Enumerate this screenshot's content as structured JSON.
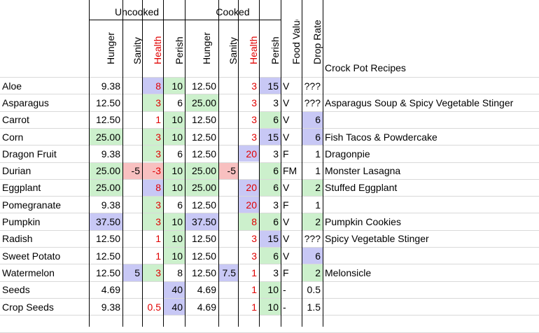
{
  "groups": {
    "uncooked": "Uncooked",
    "cooked": "Cooked"
  },
  "columns": {
    "hunger": "Hunger",
    "sanity": "Sanity",
    "health": "Health",
    "perish": "Perish",
    "hunger2": "Hunger",
    "sanity2": "Sanity",
    "health2": "Health",
    "perish2": "Perish",
    "food_value": "Food Value",
    "drop_rate": "Drop Rate",
    "recipes": "Crock Pot Recipes"
  },
  "colors": {
    "green": "#ccf0cc",
    "blue": "#c8c8f5",
    "red_fill": "#f8c0c0",
    "health_text": "#e00000"
  },
  "rows": [
    {
      "name": "Aloe",
      "values": [
        "9.38",
        "",
        "8",
        "10",
        "12.50",
        "",
        "3",
        "15",
        "V",
        "???",
        ""
      ],
      "fills": [
        "",
        "",
        "b",
        "g",
        "",
        "",
        "",
        "b",
        "",
        "",
        ""
      ]
    },
    {
      "name": "Asparagus",
      "values": [
        "12.50",
        "",
        "3",
        "6",
        "25.00",
        "",
        "3",
        "3",
        "V",
        "???",
        "Asparagus Soup & Spicy Vegetable Stinger"
      ],
      "fills": [
        "",
        "",
        "g",
        "",
        "g",
        "",
        "",
        "",
        "",
        "",
        ""
      ]
    },
    {
      "name": "Carrot",
      "values": [
        "12.50",
        "",
        "1",
        "10",
        "12.50",
        "",
        "3",
        "6",
        "V",
        "6",
        ""
      ],
      "fills": [
        "",
        "",
        "",
        "g",
        "",
        "",
        "",
        "g",
        "",
        "b",
        ""
      ]
    },
    {
      "name": "Corn",
      "values": [
        "25.00",
        "",
        "3",
        "10",
        "12.50",
        "",
        "3",
        "15",
        "V",
        "6",
        "Fish Tacos & Powdercake"
      ],
      "fills": [
        "g",
        "",
        "g",
        "g",
        "",
        "",
        "",
        "b",
        "",
        "b",
        ""
      ]
    },
    {
      "name": "Dragon Fruit",
      "values": [
        "9.38",
        "",
        "3",
        "6",
        "12.50",
        "",
        "20",
        "3",
        "F",
        "1",
        "Dragonpie"
      ],
      "fills": [
        "",
        "",
        "g",
        "",
        "",
        "",
        "b",
        "",
        "",
        "",
        ""
      ]
    },
    {
      "name": "Durian",
      "values": [
        "25.00",
        "-5",
        "-3",
        "10",
        "25.00",
        "-5",
        "",
        "6",
        "FM",
        "1",
        "Monster Lasagna"
      ],
      "fills": [
        "g",
        "r",
        "r",
        "g",
        "g",
        "r",
        "",
        "g",
        "",
        "",
        ""
      ]
    },
    {
      "name": "Eggplant",
      "values": [
        "25.00",
        "",
        "8",
        "10",
        "25.00",
        "",
        "20",
        "6",
        "V",
        "2",
        "Stuffed Eggplant"
      ],
      "fills": [
        "g",
        "",
        "b",
        "g",
        "g",
        "",
        "b",
        "g",
        "",
        "g",
        ""
      ]
    },
    {
      "name": "Pomegranate",
      "values": [
        "9.38",
        "",
        "3",
        "6",
        "12.50",
        "",
        "20",
        "3",
        "F",
        "1",
        ""
      ],
      "fills": [
        "",
        "",
        "g",
        "",
        "",
        "",
        "b",
        "",
        "",
        "",
        ""
      ]
    },
    {
      "name": "Pumpkin",
      "values": [
        "37.50",
        "",
        "3",
        "10",
        "37.50",
        "",
        "8",
        "6",
        "V",
        "2",
        "Pumpkin Cookies"
      ],
      "fills": [
        "b",
        "",
        "g",
        "g",
        "b",
        "",
        "g",
        "g",
        "",
        "g",
        ""
      ]
    },
    {
      "name": "Radish",
      "values": [
        "12.50",
        "",
        "1",
        "10",
        "12.50",
        "",
        "3",
        "15",
        "V",
        "???",
        "Spicy Vegetable Stinger"
      ],
      "fills": [
        "",
        "",
        "",
        "g",
        "",
        "",
        "",
        "b",
        "",
        "",
        ""
      ]
    },
    {
      "name": "Sweet Potato",
      "values": [
        "12.50",
        "",
        "1",
        "10",
        "12.50",
        "",
        "3",
        "6",
        "V",
        "6",
        ""
      ],
      "fills": [
        "",
        "",
        "",
        "g",
        "",
        "",
        "",
        "g",
        "",
        "b",
        ""
      ]
    },
    {
      "name": "Watermelon",
      "values": [
        "12.50",
        "5",
        "3",
        "8",
        "12.50",
        "7.5",
        "1",
        "3",
        "F",
        "2",
        "Melonsicle"
      ],
      "fills": [
        "",
        "b",
        "g",
        "",
        "",
        "b",
        "",
        "",
        "",
        "g",
        ""
      ]
    },
    {
      "name": "Seeds",
      "values": [
        "4.69",
        "",
        "",
        "40",
        "4.69",
        "",
        "1",
        "10",
        "-",
        "0.5",
        ""
      ],
      "fills": [
        "",
        "",
        "",
        "b",
        "",
        "",
        "",
        "g",
        "",
        "",
        ""
      ]
    },
    {
      "name": "Crop Seeds",
      "values": [
        "9.38",
        "",
        "0.5",
        "40",
        "4.69",
        "",
        "1",
        "10",
        "-",
        "1.5",
        ""
      ],
      "fills": [
        "",
        "",
        "",
        "b",
        "",
        "",
        "",
        "g",
        "",
        "",
        ""
      ]
    }
  ]
}
